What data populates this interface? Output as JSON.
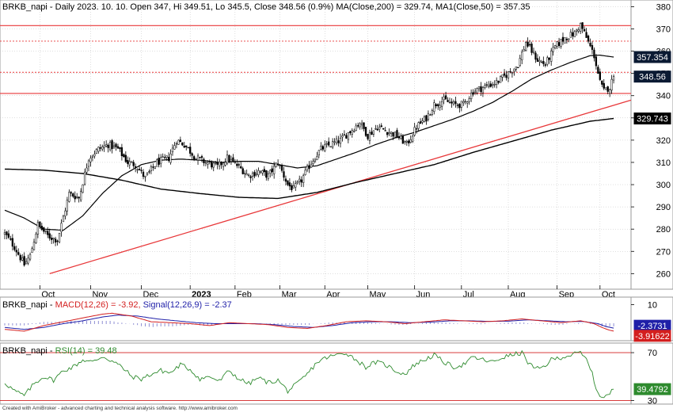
{
  "header_main": "BRKB_napi - Daily 2023. 10. 10. Open 347, Hi 349.51, Lo 345.5, Close 348.56 (0.9%) MA(Close,200) = 329.74, MA1(Close,50) = 357.35",
  "macd_title": {
    "prefix": "BRKB_napi - ",
    "macd": "MACD(12,26) = -3.92,",
    "signal": "Signal(12,26,9) = -2.37"
  },
  "rsi_title": {
    "prefix": "BRKB_napi - ",
    "rsi": "RSI(14) = 39.48"
  },
  "footer": "Created with AmiBroker - advanced charting and technical analysis software. http://www.amibroker.com",
  "colors": {
    "candle": "#000000",
    "ma200": "#000000",
    "ma50": "#000000",
    "trend": "#e8383a",
    "hline": "#e8383a",
    "grid": "#bfbfbf",
    "macd": "#d31f1f",
    "signal": "#1f1fa8",
    "hist": "#1f1fa8",
    "rsi": "#2e8b2e",
    "rsi_bounds": "#d31f1f",
    "label_box": "#0b1a33"
  },
  "chart_data": [
    {
      "type": "candlestick",
      "title": "BRKB_napi - Daily 2023. 10. 10. Open 347, Hi 349.51, Lo 345.5, Close 348.56 (0.9%) MA(Close,200) = 329.74, MA1(Close,50) = 357.35",
      "x_labels": [
        "Oct",
        "Nov",
        "Dec",
        "2023",
        "Feb",
        "Mar",
        "Apr",
        "May",
        "Jun",
        "Jul",
        "Aug",
        "Sep",
        "Oct"
      ],
      "y_ticks": [
        260,
        270,
        280,
        290,
        300,
        310,
        320,
        330,
        340,
        350,
        360,
        370,
        380
      ],
      "ylim": [
        253,
        383
      ],
      "grid": true,
      "close_anchors": [
        [
          0,
          278
        ],
        [
          5,
          272
        ],
        [
          10,
          264
        ],
        [
          13,
          268
        ],
        [
          17,
          282
        ],
        [
          22,
          277
        ],
        [
          27,
          275
        ],
        [
          33,
          296
        ],
        [
          38,
          294
        ],
        [
          43,
          312
        ],
        [
          48,
          316
        ],
        [
          53,
          318
        ],
        [
          58,
          316
        ],
        [
          63,
          310
        ],
        [
          67,
          309
        ],
        [
          72,
          303
        ],
        [
          78,
          310
        ],
        [
          84,
          312
        ],
        [
          88,
          320
        ],
        [
          92,
          318
        ],
        [
          98,
          312
        ],
        [
          103,
          310
        ],
        [
          109,
          308
        ],
        [
          114,
          312
        ],
        [
          120,
          308
        ],
        [
          125,
          304
        ],
        [
          130,
          306
        ],
        [
          135,
          304
        ],
        [
          140,
          310
        ],
        [
          145,
          300
        ],
        [
          148,
          298
        ],
        [
          152,
          302
        ],
        [
          157,
          310
        ],
        [
          162,
          316
        ],
        [
          167,
          318
        ],
        [
          172,
          320
        ],
        [
          177,
          324
        ],
        [
          182,
          328
        ],
        [
          186,
          322
        ],
        [
          191,
          326
        ],
        [
          196,
          324
        ],
        [
          201,
          322
        ],
        [
          206,
          318
        ],
        [
          211,
          326
        ],
        [
          216,
          330
        ],
        [
          220,
          336
        ],
        [
          225,
          338
        ],
        [
          230,
          336
        ],
        [
          235,
          336
        ],
        [
          240,
          342
        ],
        [
          246,
          344
        ],
        [
          252,
          346
        ],
        [
          258,
          350
        ],
        [
          263,
          354
        ],
        [
          267,
          364
        ],
        [
          270,
          360
        ],
        [
          273,
          356
        ],
        [
          277,
          354
        ],
        [
          282,
          362
        ],
        [
          287,
          366
        ],
        [
          292,
          368
        ],
        [
          295,
          372
        ],
        [
          298,
          366
        ],
        [
          300,
          362
        ],
        [
          302,
          358
        ],
        [
          305,
          346
        ],
        [
          307,
          342
        ],
        [
          310,
          344
        ],
        [
          312,
          348.56
        ]
      ],
      "horizontal_lines": [
        341,
        350.5,
        364.5,
        371.5
      ],
      "trendline": {
        "from": {
          "x_label": "Oct",
          "value": 260
        },
        "to": {
          "x_label": "Oct",
          "value": 338
        }
      },
      "series": [
        {
          "name": "MA(Close,200)",
          "last": 329.74,
          "anchors": [
            [
              0,
              307
            ],
            [
              20,
              306.5
            ],
            [
              40,
              305
            ],
            [
              60,
              302
            ],
            [
              80,
              298
            ],
            [
              100,
              296
            ],
            [
              120,
              294.3
            ],
            [
              140,
              293.8
            ],
            [
              160,
              296.5
            ],
            [
              180,
              301
            ],
            [
              200,
              305
            ],
            [
              220,
              309
            ],
            [
              240,
              314.5
            ],
            [
              260,
              319.5
            ],
            [
              280,
              324.5
            ],
            [
              300,
              328.5
            ],
            [
              312,
              329.74
            ]
          ]
        },
        {
          "name": "MA1(Close,50)",
          "last": 357.35,
          "anchors": [
            [
              0,
              288.5
            ],
            [
              10,
              285
            ],
            [
              20,
              280
            ],
            [
              30,
              279.5
            ],
            [
              40,
              286
            ],
            [
              50,
              296
            ],
            [
              60,
              304
            ],
            [
              70,
              309
            ],
            [
              80,
              311
            ],
            [
              90,
              311.5
            ],
            [
              100,
              311
            ],
            [
              110,
              310
            ],
            [
              120,
              310.5
            ],
            [
              130,
              310.5
            ],
            [
              140,
              309
            ],
            [
              150,
              307.5
            ],
            [
              160,
              308.5
            ],
            [
              170,
              311.5
            ],
            [
              180,
              314.5
            ],
            [
              190,
              318
            ],
            [
              200,
              321
            ],
            [
              210,
              323.5
            ],
            [
              220,
              326.5
            ],
            [
              230,
              329.5
            ],
            [
              240,
              333
            ],
            [
              250,
              337
            ],
            [
              260,
              342
            ],
            [
              270,
              347.5
            ],
            [
              280,
              351.5
            ],
            [
              290,
              355
            ],
            [
              300,
              358
            ],
            [
              305,
              358.2
            ],
            [
              312,
              357.35
            ]
          ]
        }
      ],
      "value_labels": [
        "357.354",
        "348.56",
        "329.743"
      ]
    },
    {
      "type": "line",
      "title": "BRKB_napi - MACD(12,26) = -3.92, Signal(12,26,9) = -2.37",
      "y_ticks": [
        10
      ],
      "ylim": [
        -9,
        14
      ],
      "series": [
        {
          "name": "MACD(12,26)",
          "last": -3.92,
          "anchors": [
            [
              0,
              -3
            ],
            [
              10,
              -4
            ],
            [
              20,
              -1
            ],
            [
              30,
              1
            ],
            [
              40,
              3
            ],
            [
              50,
              5
            ],
            [
              55,
              5.5
            ],
            [
              65,
              4
            ],
            [
              75,
              1
            ],
            [
              85,
              0.5
            ],
            [
              95,
              0
            ],
            [
              105,
              -1
            ],
            [
              115,
              0.5
            ],
            [
              125,
              0
            ],
            [
              135,
              -0.5
            ],
            [
              145,
              -2
            ],
            [
              155,
              -2.5
            ],
            [
              165,
              -1
            ],
            [
              175,
              1
            ],
            [
              185,
              1.5
            ],
            [
              195,
              1
            ],
            [
              205,
              0
            ],
            [
              215,
              1
            ],
            [
              225,
              2
            ],
            [
              235,
              1.5
            ],
            [
              245,
              1
            ],
            [
              255,
              1.5
            ],
            [
              265,
              2.5
            ],
            [
              275,
              1.5
            ],
            [
              285,
              0.5
            ],
            [
              295,
              1.5
            ],
            [
              302,
              0
            ],
            [
              306,
              -2
            ],
            [
              310,
              -3.5
            ],
            [
              312,
              -3.92
            ]
          ]
        },
        {
          "name": "Signal(12,26,9)",
          "last": -2.37,
          "anchors": [
            [
              0,
              -2
            ],
            [
              10,
              -3
            ],
            [
              20,
              -2
            ],
            [
              30,
              0
            ],
            [
              40,
              1.5
            ],
            [
              50,
              3.5
            ],
            [
              58,
              4.5
            ],
            [
              68,
              4
            ],
            [
              78,
              2.5
            ],
            [
              88,
              1.5
            ],
            [
              98,
              0.5
            ],
            [
              108,
              0
            ],
            [
              118,
              0
            ],
            [
              128,
              0
            ],
            [
              138,
              -0.5
            ],
            [
              148,
              -1.5
            ],
            [
              158,
              -2
            ],
            [
              168,
              -1
            ],
            [
              178,
              0.5
            ],
            [
              188,
              1
            ],
            [
              198,
              1
            ],
            [
              208,
              0.5
            ],
            [
              218,
              0.8
            ],
            [
              228,
              1.5
            ],
            [
              238,
              1.5
            ],
            [
              248,
              1.2
            ],
            [
              258,
              1.3
            ],
            [
              268,
              2
            ],
            [
              278,
              1.5
            ],
            [
              288,
              1
            ],
            [
              296,
              1.2
            ],
            [
              304,
              0
            ],
            [
              308,
              -1.5
            ],
            [
              312,
              -2.37
            ]
          ]
        }
      ],
      "value_labels": [
        "-2.3731",
        "-3.91622"
      ]
    },
    {
      "type": "line",
      "title": "BRKB_napi - RSI(14) = 39.48",
      "y_ticks": [
        30,
        70
      ],
      "ylim": [
        27,
        78
      ],
      "horizontal_lines": [
        30,
        70
      ],
      "series": [
        {
          "name": "RSI(14)",
          "last": 39.48,
          "anchors": [
            [
              0,
              45
            ],
            [
              5,
              38
            ],
            [
              10,
              34
            ],
            [
              15,
              44
            ],
            [
              20,
              50
            ],
            [
              25,
              47
            ],
            [
              30,
              55
            ],
            [
              35,
              58
            ],
            [
              40,
              64
            ],
            [
              45,
              62
            ],
            [
              50,
              67
            ],
            [
              55,
              63
            ],
            [
              60,
              58
            ],
            [
              65,
              50
            ],
            [
              70,
              48
            ],
            [
              75,
              52
            ],
            [
              80,
              55
            ],
            [
              85,
              53
            ],
            [
              90,
              60
            ],
            [
              95,
              56
            ],
            [
              100,
              48
            ],
            [
              105,
              50
            ],
            [
              110,
              46
            ],
            [
              115,
              55
            ],
            [
              120,
              48
            ],
            [
              125,
              44
            ],
            [
              130,
              49
            ],
            [
              135,
              45
            ],
            [
              140,
              47
            ],
            [
              145,
              38
            ],
            [
              150,
              44
            ],
            [
              155,
              52
            ],
            [
              160,
              62
            ],
            [
              165,
              66
            ],
            [
              170,
              68
            ],
            [
              175,
              70
            ],
            [
              180,
              64
            ],
            [
              185,
              58
            ],
            [
              190,
              62
            ],
            [
              195,
              60
            ],
            [
              200,
              55
            ],
            [
              205,
              52
            ],
            [
              210,
              60
            ],
            [
              215,
              64
            ],
            [
              220,
              68
            ],
            [
              225,
              62
            ],
            [
              230,
              58
            ],
            [
              235,
              60
            ],
            [
              240,
              66
            ],
            [
              245,
              64
            ],
            [
              250,
              62
            ],
            [
              255,
              66
            ],
            [
              260,
              68
            ],
            [
              265,
              70
            ],
            [
              268,
              62
            ],
            [
              272,
              56
            ],
            [
              276,
              58
            ],
            [
              280,
              64
            ],
            [
              285,
              66
            ],
            [
              290,
              68
            ],
            [
              295,
              70
            ],
            [
              298,
              64
            ],
            [
              300,
              58
            ],
            [
              303,
              40
            ],
            [
              306,
              32
            ],
            [
              309,
              34
            ],
            [
              312,
              39.48
            ]
          ]
        }
      ],
      "value_labels": [
        "39.4792"
      ]
    }
  ]
}
